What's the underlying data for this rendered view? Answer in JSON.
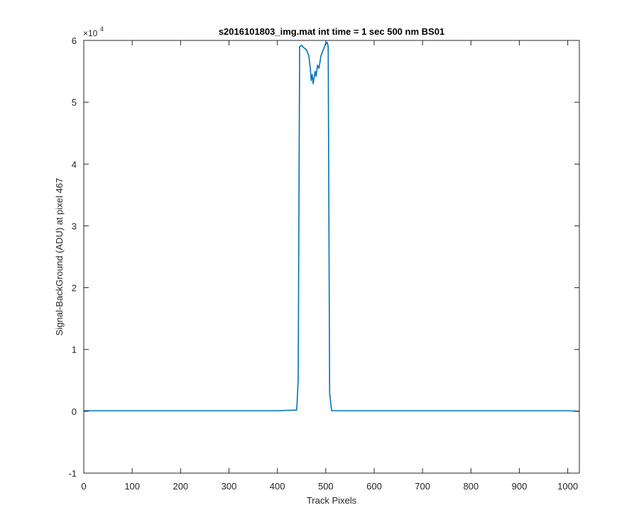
{
  "chart_data": {
    "type": "line",
    "title": "s2016101803_img.mat int time = 1 sec  500 nm BS01",
    "xlabel": "Track Pixels",
    "ylabel": "Signal-BackGround (ADU) at pixel 467",
    "y_exponent_label": "×10",
    "y_exponent": "4",
    "xlim": [
      0,
      1024
    ],
    "ylim": [
      -1,
      6
    ],
    "y_scale_factor": 10000,
    "x_ticks": [
      "0",
      "100",
      "200",
      "300",
      "400",
      "500",
      "600",
      "700",
      "800",
      "900",
      "1000"
    ],
    "y_ticks": [
      "-1",
      "0",
      "1",
      "2",
      "3",
      "4",
      "5",
      "6"
    ],
    "grid": false,
    "series_color": "#0072BD",
    "series": [
      {
        "x": [
          0,
          100,
          200,
          300,
          400,
          440,
          443,
          446,
          450,
          455,
          460,
          465,
          468,
          470,
          472,
          474,
          476,
          478,
          480,
          483,
          486,
          490,
          495,
          500,
          503,
          505,
          508,
          512,
          520,
          600,
          700,
          800,
          900,
          1000,
          1024
        ],
        "y": [
          0.01,
          0.01,
          0.01,
          0.01,
          0.01,
          0.02,
          0.5,
          5.9,
          5.92,
          5.88,
          5.85,
          5.75,
          5.55,
          5.35,
          5.45,
          5.3,
          5.4,
          5.5,
          5.42,
          5.6,
          5.55,
          5.75,
          5.85,
          5.95,
          5.97,
          5.9,
          0.3,
          0.01,
          0.01,
          0.01,
          0.01,
          0.01,
          0.01,
          0.01,
          0.0
        ]
      }
    ]
  }
}
